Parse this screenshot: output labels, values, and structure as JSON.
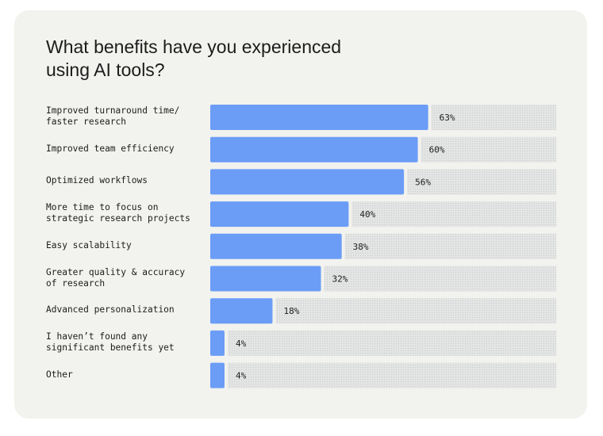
{
  "chart_data": {
    "type": "bar",
    "orientation": "horizontal",
    "title": "What benefits have you experienced using AI tools?",
    "categories": [
      "Improved turnaround time/ faster research",
      "Improved team efficiency",
      "Optimized workflows",
      "More time to focus on strategic research projects",
      "Easy scalability",
      "Greater quality & accuracy of research",
      "Advanced personalization",
      "I haven’t found any significant benefits yet",
      "Other"
    ],
    "label_lines": [
      [
        "Improved turnaround time/",
        "faster research"
      ],
      [
        "Improved team efficiency"
      ],
      [
        "Optimized workflows"
      ],
      [
        "More time to focus on",
        "strategic research projects"
      ],
      [
        "Easy scalability"
      ],
      [
        "Greater quality & accuracy",
        "of research"
      ],
      [
        "Advanced personalization"
      ],
      [
        "I haven’t found any",
        "significant benefits yet"
      ],
      [
        "Other"
      ]
    ],
    "values": [
      63,
      60,
      56,
      40,
      38,
      32,
      18,
      4,
      4
    ],
    "value_labels": [
      "63%",
      "60%",
      "56%",
      "40%",
      "38%",
      "32%",
      "18%",
      "4%",
      "4%"
    ],
    "xlim": [
      0,
      100
    ],
    "grid": false,
    "colors": {
      "bar": "#6b9df7",
      "track": "#e3e4e4",
      "track_dot": "#c9cbcc",
      "background": "#f2f2ee",
      "text": "#1c1c1c"
    }
  }
}
